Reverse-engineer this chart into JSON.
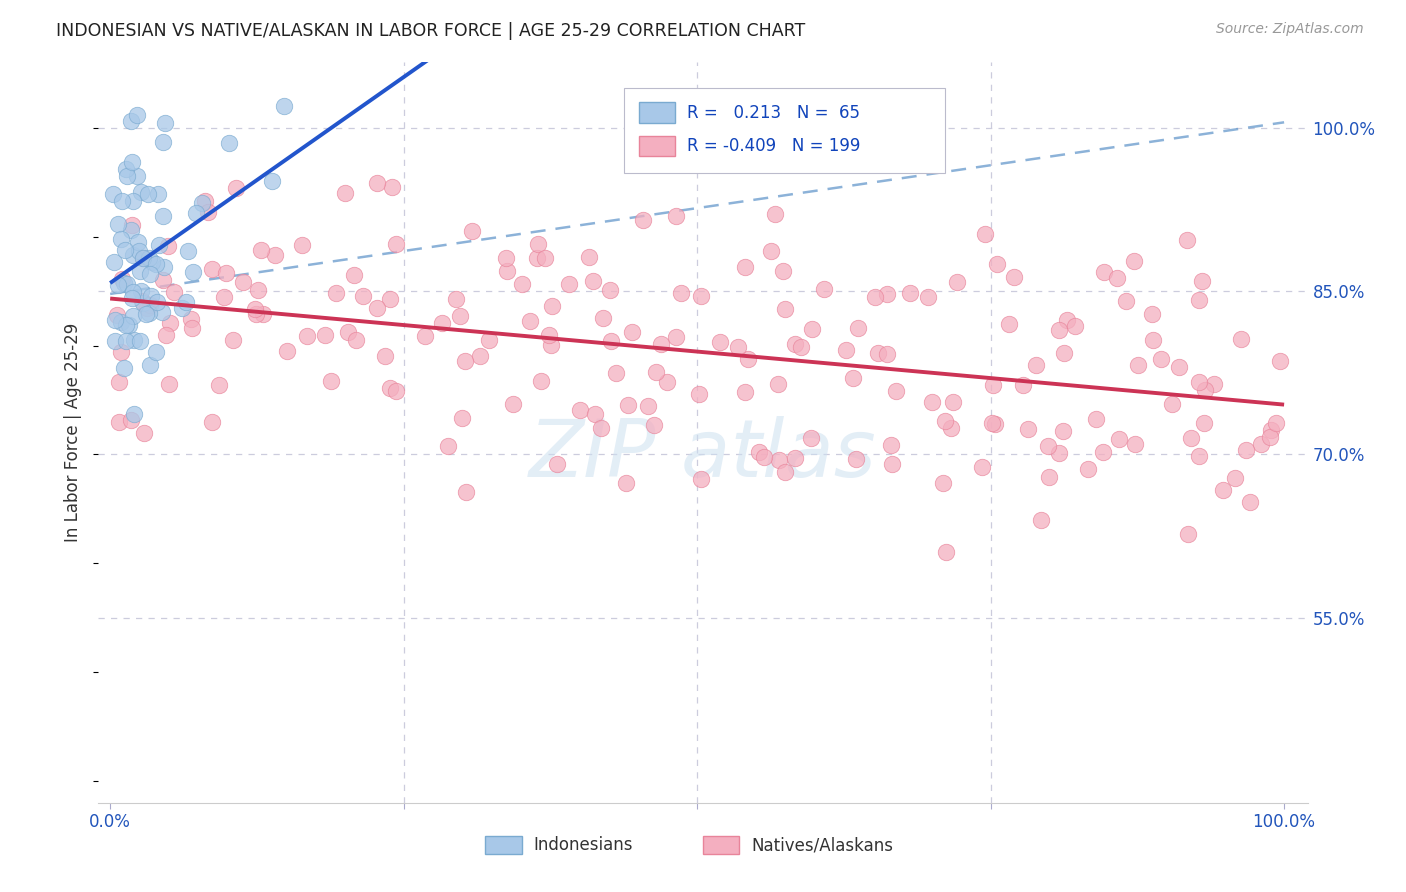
{
  "title": "INDONESIAN VS NATIVE/ALASKAN IN LABOR FORCE | AGE 25-29 CORRELATION CHART",
  "source": "Source: ZipAtlas.com",
  "ylabel": "In Labor Force | Age 25-29",
  "r_indonesian": 0.213,
  "n_indonesian": 65,
  "r_native": -0.409,
  "n_native": 199,
  "indonesian_color": "#a8c8e8",
  "indonesian_edge": "#7aaad0",
  "native_color": "#f4afc0",
  "native_edge": "#e8849a",
  "trend_indonesian_color": "#2255cc",
  "trend_native_color": "#cc3355",
  "dashed_color": "#6699cc",
  "background_color": "#ffffff",
  "grid_color": "#ccccdd",
  "ylim_low": 0.38,
  "ylim_high": 1.06,
  "xlim_low": -0.01,
  "xlim_high": 1.02
}
